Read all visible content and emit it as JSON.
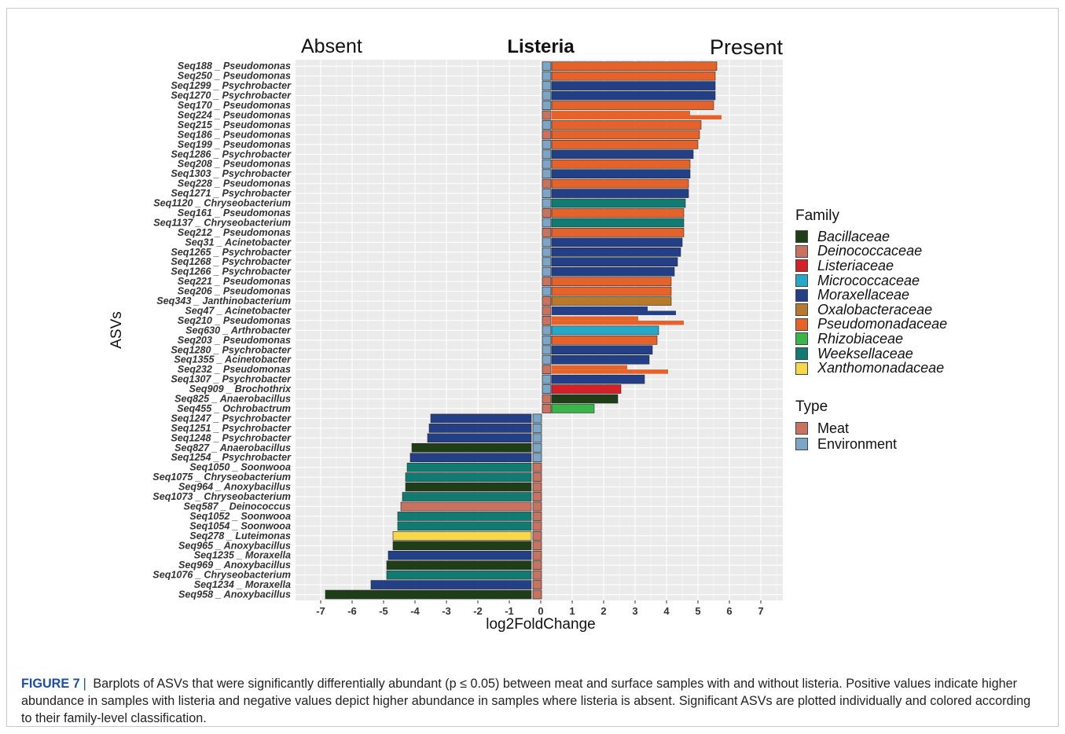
{
  "chart_data": {
    "type": "bar",
    "orientation": "horizontal",
    "title": "Listeria",
    "left_label": "Absent",
    "right_label": "Present",
    "xlabel": "log2FoldChange",
    "ylabel": "ASVs",
    "xlim": [
      -7.5,
      7.6
    ],
    "xticks": [
      -7,
      -6,
      -5,
      -4,
      -3,
      -2,
      -1,
      0,
      1,
      2,
      3,
      4,
      5,
      6,
      7
    ],
    "grid": true,
    "legend_position": "right",
    "family_legend_title": "Family",
    "families": [
      {
        "name": "Bacillaceae",
        "color": "#1f3d16"
      },
      {
        "name": "Deinococcaceae",
        "color": "#c9725f"
      },
      {
        "name": "Listeriaceae",
        "color": "#d62027"
      },
      {
        "name": "Micrococcaceae",
        "color": "#26a9c9"
      },
      {
        "name": "Moraxellaceae",
        "color": "#233f86"
      },
      {
        "name": "Oxalobacteraceae",
        "color": "#b8792a"
      },
      {
        "name": "Pseudomonadaceae",
        "color": "#e5622a"
      },
      {
        "name": "Rhizobiaceae",
        "color": "#3ab54a"
      },
      {
        "name": "Weeksellaceae",
        "color": "#117b72"
      },
      {
        "name": "Xanthomonadaceae",
        "color": "#f6d84b"
      }
    ],
    "type_legend_title": "Type",
    "types": [
      {
        "name": "Meat",
        "color": "#c9725f"
      },
      {
        "name": "Environment",
        "color": "#7ca6c8"
      }
    ],
    "asvs": [
      {
        "label": "Seq188 _ Pseudomonas",
        "values": [
          5.6
        ],
        "family": "Pseudomonadaceae",
        "type": "Environment"
      },
      {
        "label": "Seq250 _ Pseudomonas",
        "values": [
          5.55
        ],
        "family": "Pseudomonadaceae",
        "type": "Environment"
      },
      {
        "label": "Seq1299 _ Psychrobacter",
        "values": [
          5.55
        ],
        "family": "Moraxellaceae",
        "type": "Environment"
      },
      {
        "label": "Seq1270 _ Psychrobacter",
        "values": [
          5.55
        ],
        "family": "Moraxellaceae",
        "type": "Environment"
      },
      {
        "label": "Seq170 _ Pseudomonas",
        "values": [
          5.5
        ],
        "family": "Pseudomonadaceae",
        "type": "Environment"
      },
      {
        "label": "Seq224 _ Pseudomonas",
        "values": [
          4.75,
          5.75
        ],
        "family": "Pseudomonadaceae",
        "type": "Meat"
      },
      {
        "label": "Seq215 _ Pseudomonas",
        "values": [
          5.1
        ],
        "family": "Pseudomonadaceae",
        "type": "Environment"
      },
      {
        "label": "Seq186 _ Pseudomonas",
        "values": [
          5.05
        ],
        "family": "Pseudomonadaceae",
        "type": "Meat"
      },
      {
        "label": "Seq199 _ Pseudomonas",
        "values": [
          5.0
        ],
        "family": "Pseudomonadaceae",
        "type": "Environment"
      },
      {
        "label": "Seq1286 _ Psychrobacter",
        "values": [
          4.85
        ],
        "family": "Moraxellaceae",
        "type": "Environment"
      },
      {
        "label": "Seq208 _ Pseudomonas",
        "values": [
          4.75
        ],
        "family": "Pseudomonadaceae",
        "type": "Environment"
      },
      {
        "label": "Seq1303 _ Psychrobacter",
        "values": [
          4.75
        ],
        "family": "Moraxellaceae",
        "type": "Environment"
      },
      {
        "label": "Seq228 _ Pseudomonas",
        "values": [
          4.7
        ],
        "family": "Pseudomonadaceae",
        "type": "Meat"
      },
      {
        "label": "Seq1271 _ Psychrobacter",
        "values": [
          4.7
        ],
        "family": "Moraxellaceae",
        "type": "Environment"
      },
      {
        "label": "Seq1120 _ Chryseobacterium",
        "values": [
          4.6
        ],
        "family": "Weeksellaceae",
        "type": "Environment"
      },
      {
        "label": "Seq161 _ Pseudomonas",
        "values": [
          4.55
        ],
        "family": "Pseudomonadaceae",
        "type": "Meat"
      },
      {
        "label": "Seq1137 _ Chryseobacterium",
        "values": [
          4.55
        ],
        "family": "Weeksellaceae",
        "type": "Environment"
      },
      {
        "label": "Seq212 _ Pseudomonas",
        "values": [
          4.55
        ],
        "family": "Pseudomonadaceae",
        "type": "Meat"
      },
      {
        "label": "Seq31 _ Acinetobacter",
        "values": [
          4.5
        ],
        "family": "Moraxellaceae",
        "type": "Environment"
      },
      {
        "label": "Seq1265 _ Psychrobacter",
        "values": [
          4.45
        ],
        "family": "Moraxellaceae",
        "type": "Environment"
      },
      {
        "label": "Seq1268 _ Psychrobacter",
        "values": [
          4.35
        ],
        "family": "Moraxellaceae",
        "type": "Environment"
      },
      {
        "label": "Seq1266 _ Psychrobacter",
        "values": [
          4.25
        ],
        "family": "Moraxellaceae",
        "type": "Environment"
      },
      {
        "label": "Seq221 _ Pseudomonas",
        "values": [
          4.15
        ],
        "family": "Pseudomonadaceae",
        "type": "Meat"
      },
      {
        "label": "Seq206 _ Pseudomonas",
        "values": [
          4.15
        ],
        "family": "Pseudomonadaceae",
        "type": "Environment"
      },
      {
        "label": "Seq343 _ Janthinobacterium",
        "values": [
          4.15
        ],
        "family": "Oxalobacteraceae",
        "type": "Meat"
      },
      {
        "label": "Seq47 _ Acinetobacter",
        "values": [
          3.4,
          4.3
        ],
        "family": "Moraxellaceae",
        "type": "Meat"
      },
      {
        "label": "Seq210 _ Pseudomonas",
        "values": [
          3.1,
          4.55
        ],
        "family": "Pseudomonadaceae",
        "type": "Meat"
      },
      {
        "label": "Seq630 _ Arthrobacter",
        "values": [
          3.75
        ],
        "family": "Micrococcaceae",
        "type": "Environment"
      },
      {
        "label": "Seq203 _ Pseudomonas",
        "values": [
          3.7
        ],
        "family": "Pseudomonadaceae",
        "type": "Environment"
      },
      {
        "label": "Seq1280 _ Psychrobacter",
        "values": [
          3.55
        ],
        "family": "Moraxellaceae",
        "type": "Environment"
      },
      {
        "label": "Seq1355 _ Acinetobacter",
        "values": [
          3.45
        ],
        "family": "Moraxellaceae",
        "type": "Environment"
      },
      {
        "label": "Seq232 _ Pseudomonas",
        "values": [
          2.75,
          4.05
        ],
        "family": "Pseudomonadaceae",
        "type": "Meat"
      },
      {
        "label": "Seq1307 _ Psychrobacter",
        "values": [
          3.3
        ],
        "family": "Moraxellaceae",
        "type": "Environment"
      },
      {
        "label": "Seq909 _ Brochothrix",
        "values": [
          2.55
        ],
        "family": "Listeriaceae",
        "type": "Environment"
      },
      {
        "label": "Seq825 _ Anaerobacillus",
        "values": [
          2.45
        ],
        "family": "Bacillaceae",
        "type": "Meat"
      },
      {
        "label": "Seq455 _ Ochrobactrum",
        "values": [
          1.7
        ],
        "family": "Rhizobiaceae",
        "type": "Meat"
      },
      {
        "label": "Seq1247 _ Psychrobacter",
        "values": [
          -3.5
        ],
        "family": "Moraxellaceae",
        "type": "Environment"
      },
      {
        "label": "Seq1251 _ Psychrobacter",
        "values": [
          -3.55
        ],
        "family": "Moraxellaceae",
        "type": "Environment"
      },
      {
        "label": "Seq1248 _ Psychrobacter",
        "values": [
          -3.6
        ],
        "family": "Moraxellaceae",
        "type": "Environment"
      },
      {
        "label": "Seq827 _ Anaerobacillus",
        "values": [
          -4.1
        ],
        "family": "Bacillaceae",
        "type": "Environment"
      },
      {
        "label": "Seq1254 _ Psychrobacter",
        "values": [
          -4.15
        ],
        "family": "Moraxellaceae",
        "type": "Environment"
      },
      {
        "label": "Seq1050 _ Soonwooa",
        "values": [
          -4.25
        ],
        "family": "Weeksellaceae",
        "type": "Meat"
      },
      {
        "label": "Seq1075 _ Chryseobacterium",
        "values": [
          -4.3
        ],
        "family": "Weeksellaceae",
        "type": "Meat"
      },
      {
        "label": "Seq964 _ Anoxybacillus",
        "values": [
          -4.3
        ],
        "family": "Bacillaceae",
        "type": "Meat"
      },
      {
        "label": "Seq1073 _ Chryseobacterium",
        "values": [
          -4.4
        ],
        "family": "Weeksellaceae",
        "type": "Meat"
      },
      {
        "label": "Seq587 _ Deinococcus",
        "values": [
          -4.45
        ],
        "family": "Deinococcaceae",
        "type": "Meat"
      },
      {
        "label": "Seq1052 _ Soonwooa",
        "values": [
          -4.55
        ],
        "family": "Weeksellaceae",
        "type": "Meat"
      },
      {
        "label": "Seq1054 _ Soonwooa",
        "values": [
          -4.55
        ],
        "family": "Weeksellaceae",
        "type": "Meat"
      },
      {
        "label": "Seq278 _ Luteimonas",
        "values": [
          -4.7
        ],
        "family": "Xanthomonadaceae",
        "type": "Meat"
      },
      {
        "label": "Seq965 _ Anoxybacillus",
        "values": [
          -4.7
        ],
        "family": "Bacillaceae",
        "type": "Meat"
      },
      {
        "label": "Seq1235 _ Moraxella",
        "values": [
          -4.85
        ],
        "family": "Moraxellaceae",
        "type": "Meat"
      },
      {
        "label": "Seq969 _ Anoxybacillus",
        "values": [
          -4.9
        ],
        "family": "Bacillaceae",
        "type": "Meat"
      },
      {
        "label": "Seq1076 _ Chryseobacterium",
        "values": [
          -4.9
        ],
        "family": "Weeksellaceae",
        "type": "Meat"
      },
      {
        "label": "Seq1234 _ Moraxella",
        "values": [
          -5.4
        ],
        "family": "Moraxellaceae",
        "type": "Meat"
      },
      {
        "label": "Seq958 _ Anoxybacillus",
        "values": [
          -6.85
        ],
        "family": "Bacillaceae",
        "type": "Meat"
      }
    ]
  },
  "caption": {
    "label": "FIGURE 7",
    "separator": "|",
    "text": "Barplots of ASVs that were significantly differentially abundant (p ≤ 0.05) between meat and surface samples with and without listeria. Positive values indicate higher abundance in samples with listeria and negative values depict higher abundance in samples where listeria is absent. Significant ASVs are plotted individually and colored according to their family-level classification."
  }
}
